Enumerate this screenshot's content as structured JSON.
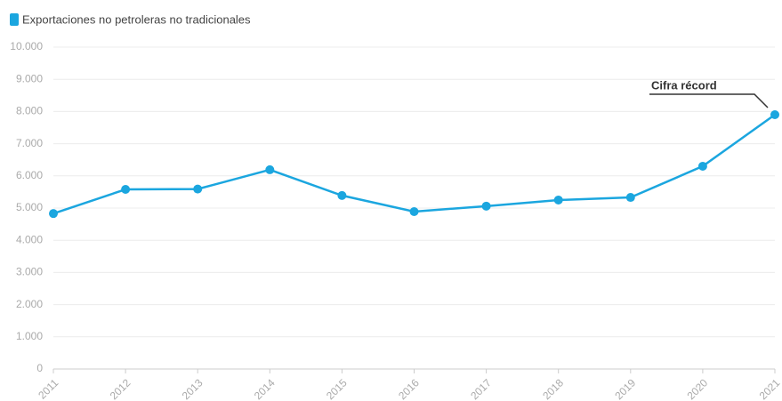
{
  "chart_data": {
    "type": "line",
    "categories": [
      "2011",
      "2012",
      "2013",
      "2014",
      "2015",
      "2016",
      "2017",
      "2018",
      "2019",
      "2020",
      "2021"
    ],
    "series": [
      {
        "name": "Exportaciones no petroleras no tradicionales",
        "color": "#1ba6df",
        "values": [
          4830,
          5580,
          5590,
          6190,
          5390,
          4890,
          5060,
          5250,
          5330,
          6300,
          7900
        ]
      }
    ],
    "ylim": [
      0,
      10000
    ],
    "yticks": [
      0,
      {
        "value": 1000,
        "label": "1.000"
      },
      {
        "value": 2000,
        "label": "2.000"
      },
      {
        "value": 3000,
        "label": "3.000"
      },
      {
        "value": 4000,
        "label": "4.000"
      },
      {
        "value": 5000,
        "label": "5.000"
      },
      {
        "value": 6000,
        "label": "6.000"
      },
      {
        "value": 7000,
        "label": "7.000"
      },
      {
        "value": 8000,
        "label": "8.000"
      },
      {
        "value": 9000,
        "label": "9.000"
      },
      {
        "value": 10000,
        "label": "10.000"
      }
    ],
    "grid": true,
    "annotation": "Cifra récord"
  }
}
